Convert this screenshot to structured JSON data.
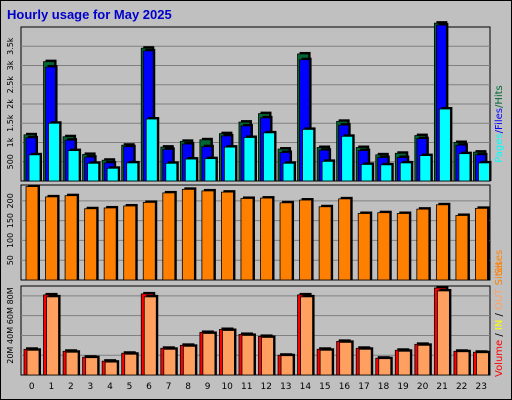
{
  "title": "Hourly usage for May 2025",
  "colors": {
    "pages": "#00ffff",
    "files": "#0000ff",
    "hits": "#006633",
    "sites": "#ff8000",
    "kbytes": "#ff0000",
    "in": "#ffff00",
    "out": "#ffa060"
  },
  "chart_data": [
    {
      "type": "bar",
      "name": "hits-files-pages",
      "categories": [
        "0",
        "1",
        "2",
        "3",
        "4",
        "5",
        "6",
        "7",
        "8",
        "9",
        "10",
        "11",
        "12",
        "13",
        "14",
        "15",
        "16",
        "17",
        "18",
        "19",
        "20",
        "21",
        "22",
        "23"
      ],
      "ylim": [
        0,
        4000
      ],
      "yticks": [
        500,
        1000,
        1500,
        2000,
        2500,
        3000,
        3500
      ],
      "ytick_labels": [
        "500",
        "1k",
        "1.5k",
        "2k",
        "2.5k",
        "3k",
        "3.5k"
      ],
      "series": [
        {
          "name": "Hits",
          "values": [
            1200,
            3100,
            1150,
            690,
            540,
            930,
            3450,
            880,
            1030,
            1070,
            1230,
            1530,
            1750,
            830,
            3300,
            870,
            1550,
            870,
            680,
            720,
            1180,
            4100,
            1000,
            750
          ]
        },
        {
          "name": "Files",
          "values": [
            1120,
            2960,
            1060,
            620,
            470,
            890,
            3380,
            820,
            960,
            890,
            1170,
            1430,
            1640,
            740,
            3150,
            800,
            1450,
            790,
            610,
            610,
            1100,
            4050,
            930,
            680
          ]
        },
        {
          "name": "Pages",
          "values": [
            680,
            1500,
            790,
            460,
            330,
            470,
            1610,
            460,
            570,
            580,
            880,
            1130,
            1250,
            460,
            1340,
            510,
            1160,
            430,
            420,
            470,
            660,
            1870,
            710,
            470
          ]
        }
      ],
      "legend": [
        "Pages",
        "/",
        "Files",
        "/",
        "Hits"
      ]
    },
    {
      "type": "bar",
      "name": "sites",
      "categories": [
        "0",
        "1",
        "2",
        "3",
        "4",
        "5",
        "6",
        "7",
        "8",
        "9",
        "10",
        "11",
        "12",
        "13",
        "14",
        "15",
        "16",
        "17",
        "18",
        "19",
        "20",
        "21",
        "22",
        "23"
      ],
      "ylim": [
        0,
        240
      ],
      "yticks": [
        50,
        100,
        150,
        200
      ],
      "ytick_labels": [
        "50",
        "100",
        "150",
        "200"
      ],
      "series": [
        {
          "name": "Sites",
          "values": [
            236,
            210,
            213,
            180,
            182,
            187,
            196,
            220,
            229,
            225,
            222,
            206,
            207,
            195,
            202,
            185,
            205,
            168,
            170,
            168,
            179,
            190,
            163,
            181
          ]
        }
      ],
      "legend": [
        "Sites"
      ]
    },
    {
      "type": "bar",
      "name": "volume",
      "categories": [
        "0",
        "1",
        "2",
        "3",
        "4",
        "5",
        "6",
        "7",
        "8",
        "9",
        "10",
        "11",
        "12",
        "13",
        "14",
        "15",
        "16",
        "17",
        "18",
        "19",
        "20",
        "21",
        "22",
        "23"
      ],
      "ylim": [
        0,
        90000
      ],
      "yticks": [
        20000,
        40000,
        60000,
        80000
      ],
      "ytick_labels": [
        "20M",
        "40M",
        "60M",
        "80M"
      ],
      "series": [
        {
          "name": "Volume",
          "values": [
            26000,
            81000,
            24000,
            18000,
            14000,
            22000,
            82000,
            27000,
            30000,
            43000,
            46000,
            41000,
            39000,
            20000,
            81000,
            26000,
            34000,
            27000,
            17000,
            25000,
            31000,
            88000,
            24000,
            23000
          ]
        },
        {
          "name": "OUT",
          "values": [
            25000,
            79000,
            23000,
            17500,
            13000,
            21000,
            79000,
            26000,
            29000,
            42000,
            45000,
            40000,
            38000,
            19500,
            79000,
            25000,
            33000,
            26000,
            16500,
            24000,
            30000,
            85000,
            23500,
            22500
          ]
        }
      ],
      "legend": [
        "Volume",
        "/",
        "IN",
        "/",
        "OUT",
        "Sites"
      ]
    }
  ]
}
